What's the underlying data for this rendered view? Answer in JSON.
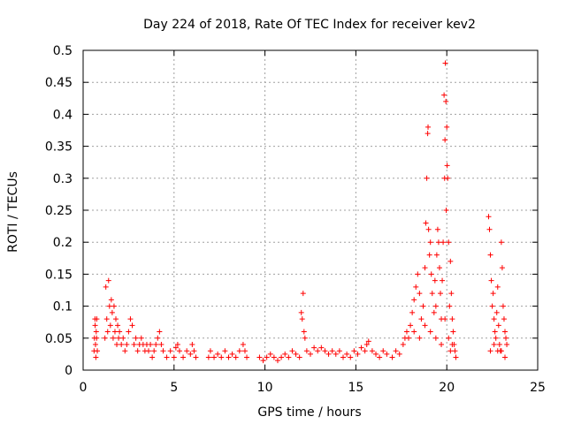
{
  "chart_data": {
    "type": "scatter",
    "title": "Day 224 of 2018, Rate Of TEC Index for receiver kev2",
    "xlabel": "GPS time / hours",
    "ylabel": "ROTI / TECUs",
    "xlim": [
      0,
      25
    ],
    "ylim": [
      0,
      0.5
    ],
    "xticks": [
      "0",
      "5",
      "10",
      "15",
      "20",
      "25"
    ],
    "yticks": [
      "0",
      "0.05",
      "0.1",
      "0.15",
      "0.2",
      "0.25",
      "0.3",
      "0.35",
      "0.4",
      "0.45",
      "0.5"
    ],
    "grid": true,
    "marker": "+",
    "color": "#ff0000",
    "series": [
      {
        "name": "ROTI",
        "points": [
          [
            0.6,
            0.03
          ],
          [
            0.62,
            0.05
          ],
          [
            0.65,
            0.08
          ],
          [
            0.68,
            0.04
          ],
          [
            0.7,
            0.02
          ],
          [
            0.72,
            0.06
          ],
          [
            0.75,
            0.08
          ],
          [
            0.78,
            0.03
          ],
          [
            0.66,
            0.07
          ],
          [
            0.74,
            0.05
          ],
          [
            1.2,
            0.05
          ],
          [
            1.25,
            0.13
          ],
          [
            1.3,
            0.08
          ],
          [
            1.35,
            0.06
          ],
          [
            1.4,
            0.14
          ],
          [
            1.45,
            0.1
          ],
          [
            1.5,
            0.07
          ],
          [
            1.55,
            0.11
          ],
          [
            1.6,
            0.09
          ],
          [
            1.65,
            0.05
          ],
          [
            1.7,
            0.1
          ],
          [
            1.75,
            0.06
          ],
          [
            1.8,
            0.08
          ],
          [
            1.85,
            0.04
          ],
          [
            1.9,
            0.07
          ],
          [
            1.95,
            0.05
          ],
          [
            2.0,
            0.06
          ],
          [
            2.1,
            0.04
          ],
          [
            2.2,
            0.05
          ],
          [
            2.3,
            0.03
          ],
          [
            2.4,
            0.04
          ],
          [
            2.5,
            0.06
          ],
          [
            2.6,
            0.08
          ],
          [
            2.7,
            0.07
          ],
          [
            2.8,
            0.04
          ],
          [
            2.9,
            0.05
          ],
          [
            3.0,
            0.03
          ],
          [
            3.1,
            0.04
          ],
          [
            3.2,
            0.05
          ],
          [
            3.3,
            0.04
          ],
          [
            3.4,
            0.03
          ],
          [
            3.5,
            0.04
          ],
          [
            3.6,
            0.03
          ],
          [
            3.7,
            0.04
          ],
          [
            3.8,
            0.02
          ],
          [
            3.9,
            0.03
          ],
          [
            4.0,
            0.04
          ],
          [
            4.1,
            0.05
          ],
          [
            4.2,
            0.06
          ],
          [
            4.3,
            0.04
          ],
          [
            4.4,
            0.03
          ],
          [
            4.6,
            0.02
          ],
          [
            4.8,
            0.03
          ],
          [
            5.0,
            0.02
          ],
          [
            5.1,
            0.035
          ],
          [
            5.2,
            0.04
          ],
          [
            5.3,
            0.03
          ],
          [
            5.5,
            0.02
          ],
          [
            5.7,
            0.03
          ],
          [
            5.9,
            0.025
          ],
          [
            6.0,
            0.04
          ],
          [
            6.1,
            0.03
          ],
          [
            6.2,
            0.02
          ],
          [
            6.9,
            0.02
          ],
          [
            7.0,
            0.03
          ],
          [
            7.2,
            0.02
          ],
          [
            7.4,
            0.025
          ],
          [
            7.6,
            0.02
          ],
          [
            7.8,
            0.03
          ],
          [
            8.0,
            0.02
          ],
          [
            8.2,
            0.025
          ],
          [
            8.4,
            0.02
          ],
          [
            8.6,
            0.03
          ],
          [
            8.8,
            0.04
          ],
          [
            8.9,
            0.03
          ],
          [
            9.0,
            0.02
          ],
          [
            9.7,
            0.02
          ],
          [
            9.9,
            0.015
          ],
          [
            10.1,
            0.02
          ],
          [
            10.3,
            0.025
          ],
          [
            10.5,
            0.02
          ],
          [
            10.7,
            0.015
          ],
          [
            10.9,
            0.02
          ],
          [
            11.1,
            0.025
          ],
          [
            11.3,
            0.02
          ],
          [
            11.5,
            0.03
          ],
          [
            11.7,
            0.025
          ],
          [
            11.9,
            0.02
          ],
          [
            12.0,
            0.09
          ],
          [
            12.05,
            0.08
          ],
          [
            12.1,
            0.12
          ],
          [
            12.15,
            0.06
          ],
          [
            12.2,
            0.05
          ],
          [
            12.3,
            0.03
          ],
          [
            12.5,
            0.025
          ],
          [
            12.7,
            0.035
          ],
          [
            12.9,
            0.03
          ],
          [
            13.1,
            0.035
          ],
          [
            13.3,
            0.03
          ],
          [
            13.5,
            0.025
          ],
          [
            13.7,
            0.03
          ],
          [
            13.9,
            0.025
          ],
          [
            14.1,
            0.03
          ],
          [
            14.3,
            0.02
          ],
          [
            14.5,
            0.025
          ],
          [
            14.7,
            0.02
          ],
          [
            14.9,
            0.03
          ],
          [
            15.1,
            0.025
          ],
          [
            15.3,
            0.035
          ],
          [
            15.5,
            0.03
          ],
          [
            15.6,
            0.04
          ],
          [
            15.7,
            0.045
          ],
          [
            15.9,
            0.03
          ],
          [
            16.1,
            0.025
          ],
          [
            16.3,
            0.02
          ],
          [
            16.5,
            0.03
          ],
          [
            16.7,
            0.025
          ],
          [
            17.0,
            0.02
          ],
          [
            17.2,
            0.03
          ],
          [
            17.4,
            0.025
          ],
          [
            17.6,
            0.04
          ],
          [
            17.7,
            0.05
          ],
          [
            17.8,
            0.06
          ],
          [
            17.9,
            0.05
          ],
          [
            18.0,
            0.07
          ],
          [
            18.1,
            0.09
          ],
          [
            18.2,
            0.11
          ],
          [
            18.3,
            0.13
          ],
          [
            18.4,
            0.15
          ],
          [
            18.5,
            0.12
          ],
          [
            18.6,
            0.08
          ],
          [
            18.7,
            0.1
          ],
          [
            18.8,
            0.16
          ],
          [
            18.85,
            0.23
          ],
          [
            18.9,
            0.3
          ],
          [
            18.95,
            0.37
          ],
          [
            18.97,
            0.38
          ],
          [
            19.0,
            0.22
          ],
          [
            19.05,
            0.18
          ],
          [
            19.1,
            0.2
          ],
          [
            19.15,
            0.15
          ],
          [
            19.2,
            0.12
          ],
          [
            19.3,
            0.09
          ],
          [
            19.35,
            0.14
          ],
          [
            19.4,
            0.1
          ],
          [
            19.45,
            0.18
          ],
          [
            19.5,
            0.22
          ],
          [
            19.55,
            0.2
          ],
          [
            19.6,
            0.16
          ],
          [
            19.65,
            0.12
          ],
          [
            19.7,
            0.08
          ],
          [
            19.75,
            0.14
          ],
          [
            19.8,
            0.2
          ],
          [
            19.85,
            0.43
          ],
          [
            19.88,
            0.3
          ],
          [
            19.9,
            0.36
          ],
          [
            19.92,
            0.48
          ],
          [
            19.95,
            0.42
          ],
          [
            19.97,
            0.25
          ],
          [
            20.0,
            0.38
          ],
          [
            20.02,
            0.32
          ],
          [
            20.05,
            0.3
          ],
          [
            20.1,
            0.2
          ],
          [
            20.15,
            0.1
          ],
          [
            20.2,
            0.17
          ],
          [
            20.25,
            0.12
          ],
          [
            20.3,
            0.08
          ],
          [
            20.35,
            0.06
          ],
          [
            20.4,
            0.04
          ],
          [
            20.45,
            0.03
          ],
          [
            20.5,
            0.02
          ],
          [
            18.5,
            0.05
          ],
          [
            18.8,
            0.07
          ],
          [
            19.1,
            0.06
          ],
          [
            19.4,
            0.05
          ],
          [
            19.7,
            0.04
          ],
          [
            20.1,
            0.05
          ],
          [
            20.3,
            0.04
          ],
          [
            18.2,
            0.06
          ],
          [
            19.9,
            0.08
          ],
          [
            20.2,
            0.03
          ],
          [
            22.3,
            0.24
          ],
          [
            22.35,
            0.22
          ],
          [
            22.4,
            0.18
          ],
          [
            22.45,
            0.14
          ],
          [
            22.5,
            0.1
          ],
          [
            22.55,
            0.12
          ],
          [
            22.6,
            0.08
          ],
          [
            22.65,
            0.06
          ],
          [
            22.7,
            0.05
          ],
          [
            22.75,
            0.09
          ],
          [
            22.8,
            0.13
          ],
          [
            22.85,
            0.07
          ],
          [
            22.9,
            0.04
          ],
          [
            22.95,
            0.03
          ],
          [
            23.0,
            0.2
          ],
          [
            23.05,
            0.16
          ],
          [
            23.1,
            0.1
          ],
          [
            23.15,
            0.08
          ],
          [
            23.2,
            0.06
          ],
          [
            23.25,
            0.05
          ],
          [
            23.3,
            0.04
          ],
          [
            22.4,
            0.03
          ],
          [
            22.6,
            0.04
          ],
          [
            22.8,
            0.03
          ],
          [
            23.0,
            0.03
          ],
          [
            23.2,
            0.02
          ]
        ]
      }
    ]
  }
}
